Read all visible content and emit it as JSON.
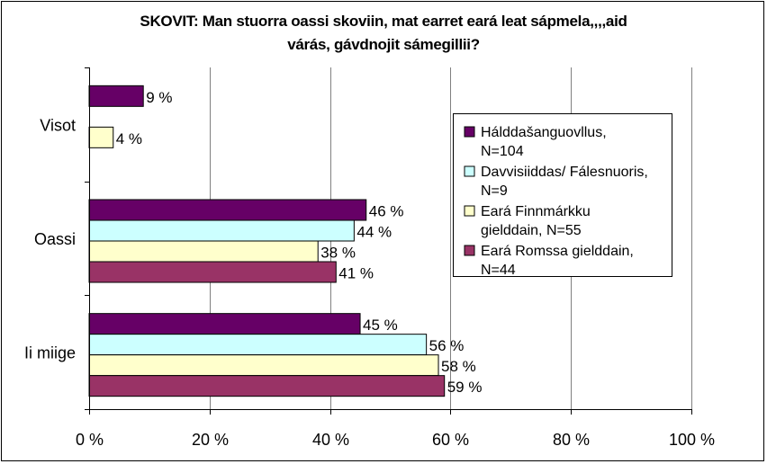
{
  "chart_data": {
    "type": "bar",
    "orientation": "horizontal",
    "title": "SKOVIT: Man stuorra oassi skoviin, mat earret eará leat sápmela,,,,aid várás, gávdnojit sámegillii?",
    "title_lines": [
      "SKOVIT: Man stuorra oassi skoviin, mat earret eará leat sápmela,,,,aid",
      "várás, gávdnojit sámegillii?"
    ],
    "categories": [
      "Visot",
      "Oassi",
      "Ii miige"
    ],
    "series": [
      {
        "name": "Hálddašanguovllus, N=104",
        "legend_lines": [
          "Hálddašanguovllus,",
          "N=104"
        ],
        "color": "#660066",
        "values": [
          9,
          46,
          45
        ],
        "labels": [
          "9 %",
          "46 %",
          "45 %"
        ]
      },
      {
        "name": "Davvisiiddas/ Fálesnuoris, N=9",
        "legend_lines": [
          "Davvisiiddas/ Fálesnuoris,",
          "N=9"
        ],
        "color": "#CCFFFF",
        "values": [
          0,
          44,
          56
        ],
        "labels": [
          "",
          "44 %",
          "56 %"
        ]
      },
      {
        "name": "Eará Finnmárkku gielddain, N=55",
        "legend_lines": [
          "Eará Finnmárkku",
          "gielddain, N=55"
        ],
        "color": "#FFFFCC",
        "values": [
          4,
          38,
          58
        ],
        "labels": [
          "4 %",
          "38 %",
          "58 %"
        ]
      },
      {
        "name": "Eará Romssa gielddain, N=44",
        "legend_lines": [
          "Eará Romssa gielddain,",
          "N=44"
        ],
        "color": "#993366",
        "values": [
          0,
          41,
          59
        ],
        "labels": [
          "",
          "41 %",
          "59 %"
        ]
      }
    ],
    "xlim": [
      0,
      100
    ],
    "xticks": [
      0,
      20,
      40,
      60,
      80,
      100
    ],
    "xtick_labels": [
      "0 %",
      "20 %",
      "40 %",
      "60 %",
      "80 %",
      "100 %"
    ],
    "xlabel": "",
    "ylabel": "",
    "grid": "vertical",
    "legend_position": "right"
  }
}
